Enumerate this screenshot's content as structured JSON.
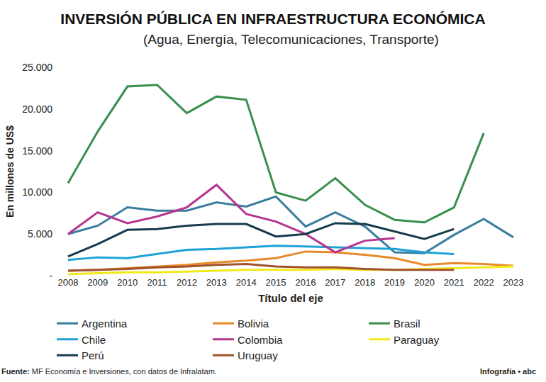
{
  "chart_data": {
    "type": "line",
    "title": "INVERSIÓN PÚBLICA EN INFRAESTRUCTURA ECONÓMICA",
    "subtitle": "(Agua, Energía, Telecomunicaciones, Transporte)",
    "x_label": "Título del eje",
    "y_label": "En millones de US$",
    "annotations": [
      "Fuente: MF Economía e Inversiones, con datos de Infralatam.",
      "Infografía • abc"
    ],
    "categories": [
      "2008",
      "2009",
      "2010",
      "2011",
      "2012",
      "2013",
      "2014",
      "2015",
      "2016",
      "2017",
      "2018",
      "2019",
      "2020",
      "2021",
      "2022",
      "2023"
    ],
    "ylim": [
      0,
      25000
    ],
    "yticks": [
      {
        "value": 0,
        "label": "-"
      },
      {
        "value": 5000,
        "label": "5.000"
      },
      {
        "value": 10000,
        "label": "10.000"
      },
      {
        "value": 15000,
        "label": "15.000"
      },
      {
        "value": 20000,
        "label": "20.000"
      },
      {
        "value": 25000,
        "label": "25.000"
      }
    ],
    "grid": false,
    "legend": "bottom",
    "series": [
      {
        "name": "Argentina",
        "color": "#3a7d9e",
        "values": [
          5000,
          6000,
          8200,
          7800,
          7800,
          8800,
          8300,
          9500,
          5900,
          7600,
          5900,
          2800,
          2700,
          4900,
          6800,
          4600
        ]
      },
      {
        "name": "Bolivia",
        "color": "#e8892b",
        "values": [
          600,
          700,
          900,
          1100,
          1300,
          1600,
          1800,
          2100,
          2900,
          2800,
          2500,
          2100,
          1300,
          1500,
          1400,
          1200
        ]
      },
      {
        "name": "Brasil",
        "color": "#3a8f4e",
        "values": [
          11100,
          17300,
          22700,
          22900,
          19500,
          21500,
          21100,
          10000,
          9000,
          11700,
          8500,
          6700,
          6400,
          8200,
          17100,
          null
        ]
      },
      {
        "name": "Chile",
        "color": "#1fa3d6",
        "values": [
          1900,
          2200,
          2100,
          2600,
          3100,
          3200,
          3400,
          3600,
          3500,
          3400,
          3300,
          3200,
          2800,
          2600,
          null,
          null
        ]
      },
      {
        "name": "Colombia",
        "color": "#b5358f",
        "values": [
          5000,
          7600,
          6300,
          7100,
          8200,
          10900,
          7400,
          6500,
          5000,
          2800,
          4200,
          4500,
          null,
          null,
          null,
          null
        ]
      },
      {
        "name": "Paraguay",
        "color": "#f2e91a",
        "values": [
          200,
          300,
          400,
          400,
          500,
          600,
          700,
          700,
          700,
          800,
          700,
          700,
          800,
          900,
          1000,
          1100
        ]
      },
      {
        "name": "Perú",
        "color": "#173b4d",
        "values": [
          2300,
          3800,
          5500,
          5600,
          6000,
          6200,
          6200,
          4700,
          5000,
          6300,
          6200,
          5300,
          4400,
          5600,
          null,
          null
        ]
      },
      {
        "name": "Uruguay",
        "color": "#a0522d",
        "values": [
          600,
          700,
          800,
          1000,
          1100,
          1300,
          1400,
          1100,
          1000,
          1000,
          800,
          700,
          700,
          700,
          null,
          null
        ]
      }
    ]
  }
}
